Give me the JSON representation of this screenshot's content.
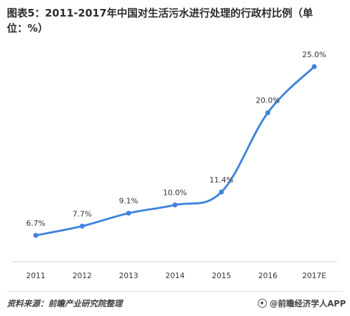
{
  "title": "图表5：2011-2017年中国对生活污水进行处理的行政村比例（单位：%）",
  "footer": {
    "source": "资料来源：前瞻产业研究院整理",
    "brand": "@前瞻经济学人APP"
  },
  "colors": {
    "line": "#3f84dc",
    "axis": "#cccccc",
    "label": "#333333"
  },
  "chart_data": {
    "type": "line",
    "categories": [
      "2011",
      "2012",
      "2013",
      "2014",
      "2015",
      "2016",
      "2017E"
    ],
    "series": [
      {
        "values": [
          6.7,
          7.7,
          9.1,
          10.0,
          11.4,
          20.0,
          25.0
        ],
        "labels": [
          "6.7%",
          "7.7%",
          "9.1%",
          "10.0%",
          "11.4%",
          "20.0%",
          "25.0%"
        ]
      }
    ],
    "ylim": [
      4,
      27
    ],
    "grid": false,
    "legend": "none"
  }
}
